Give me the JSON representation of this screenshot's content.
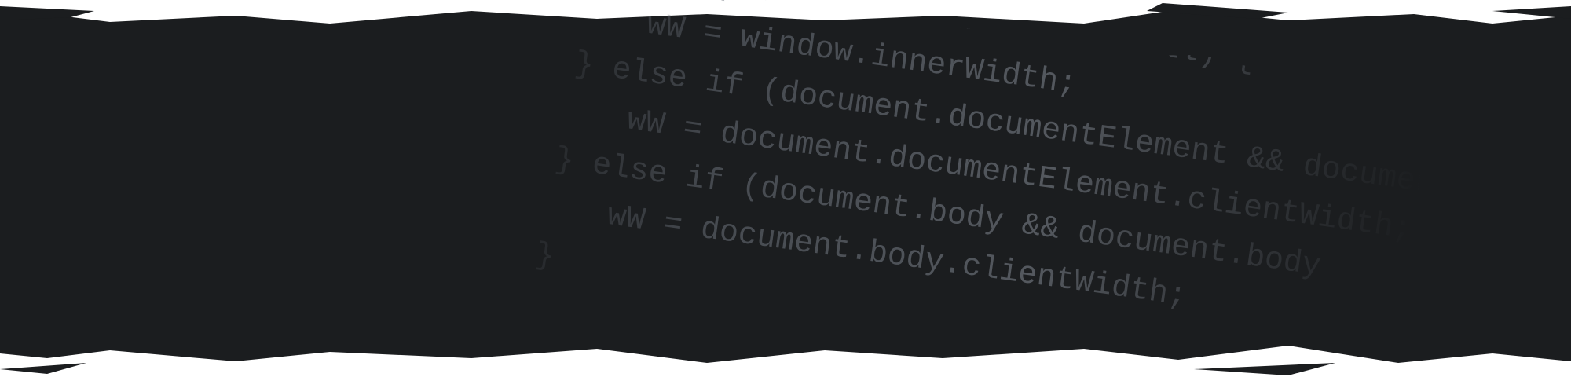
{
  "code": {
    "lines": [
      "if (window.innerWidth == null) {",
      "wW = window.innerWidth;",
      "} else if (document.documentElement && document",
      "wW = document.documentElement.clientWidth;",
      "} else if (document.body && document.body",
      "wW = document.body.clientWidth;",
      "}"
    ]
  }
}
